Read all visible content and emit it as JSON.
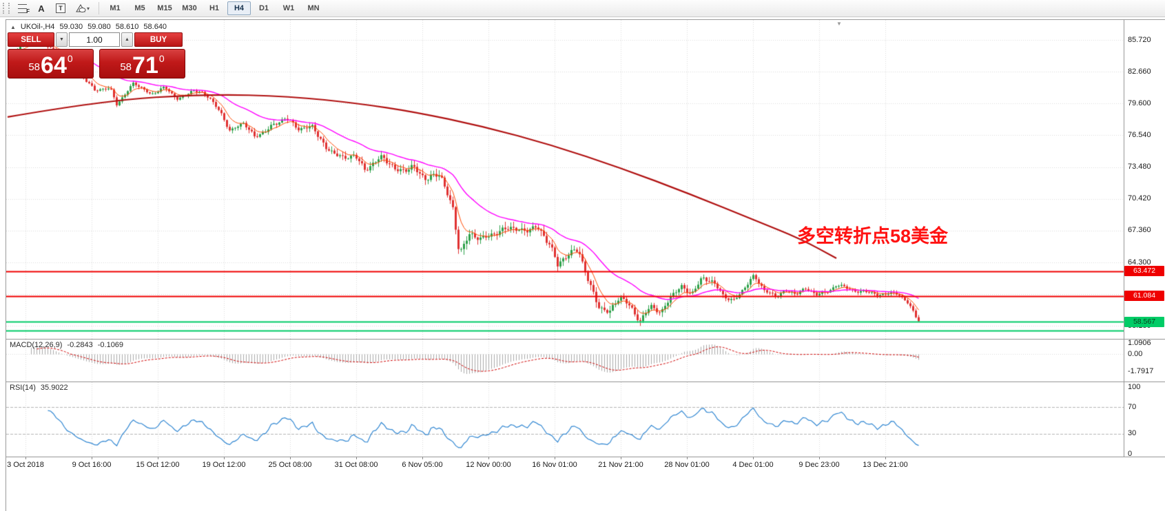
{
  "toolbar": {
    "tools": [
      {
        "id": "fibonacci-tool",
        "glyph": "F"
      },
      {
        "id": "text-tool",
        "glyph": "A"
      },
      {
        "id": "label-tool",
        "glyph": "T"
      },
      {
        "id": "shapes-tool",
        "caret": "▾"
      }
    ],
    "timeframes": [
      "M1",
      "M5",
      "M15",
      "M30",
      "H1",
      "H4",
      "D1",
      "W1",
      "MN"
    ],
    "active_timeframe": "H4"
  },
  "icons": {
    "quote_arrow": "▲",
    "spin_down": "▼",
    "spin_up": "▲",
    "shift_marker": "▼"
  },
  "quote": {
    "symbol": "UKOil-,H4",
    "open": "59.030",
    "high": "59.080",
    "low": "58.610",
    "close": "58.640"
  },
  "trade_panel": {
    "sell_label": "SELL",
    "buy_label": "BUY",
    "volume": "1.00",
    "sell": {
      "prefix": "58",
      "big": "64",
      "pip": "0"
    },
    "buy": {
      "prefix": "58",
      "big": "71",
      "pip": "0"
    }
  },
  "annotation": "多空转折点58美金",
  "price_axis": [
    "85.720",
    "82.660",
    "79.600",
    "76.540",
    "73.480",
    "70.420",
    "67.360",
    "64.300",
    "61.240",
    "58.180"
  ],
  "level_badges": [
    {
      "text": "63.472",
      "bg": "#ef0000",
      "fg": "#ffffff"
    },
    {
      "text": "61.084",
      "bg": "#ef0000",
      "fg": "#ffffff"
    },
    {
      "text": "58.567",
      "bg": "#00cc66",
      "fg": "#0a3d1d"
    }
  ],
  "macd": {
    "name": "MACD(12,26,9)",
    "value": "-0.2843",
    "signal": "-0.1069",
    "axis": [
      "1.0906",
      "0.00",
      "-1.7917"
    ]
  },
  "rsi": {
    "name": "RSI(14)",
    "value": "35.9022",
    "axis": [
      "100",
      "70",
      "30",
      "0"
    ]
  },
  "time_axis": [
    "3 Oct 2018",
    "9 Oct 16:00",
    "15 Oct 12:00",
    "19 Oct 12:00",
    "25 Oct 08:00",
    "31 Oct 08:00",
    "6 Nov 05:00",
    "12 Nov 00:00",
    "16 Nov 01:00",
    "21 Nov 21:00",
    "28 Nov 01:00",
    "4 Dec 01:00",
    "9 Dec 23:00",
    "13 Dec 21:00"
  ],
  "chart_data": {
    "type": "candlestick",
    "symbol": "UKOil-",
    "timeframe": "H4",
    "current_ohlc": {
      "open": 59.03,
      "high": 59.08,
      "low": 58.61,
      "close": 58.64
    },
    "candles": 331,
    "last_close": 58.64,
    "y_range": [
      57.0,
      87.4
    ],
    "price_path": [
      [
        0.0,
        84.2
      ],
      [
        0.027,
        86.0
      ],
      [
        0.039,
        85.3
      ],
      [
        0.054,
        84.4
      ],
      [
        0.073,
        82.9
      ],
      [
        0.088,
        81.6
      ],
      [
        0.094,
        80.8
      ],
      [
        0.111,
        81.0
      ],
      [
        0.118,
        79.5
      ],
      [
        0.137,
        81.7
      ],
      [
        0.156,
        80.3
      ],
      [
        0.171,
        81.2
      ],
      [
        0.186,
        80.1
      ],
      [
        0.202,
        80.8
      ],
      [
        0.22,
        80.2
      ],
      [
        0.232,
        78.9
      ],
      [
        0.243,
        77.0
      ],
      [
        0.258,
        77.6
      ],
      [
        0.27,
        76.3
      ],
      [
        0.289,
        77.6
      ],
      [
        0.304,
        78.1
      ],
      [
        0.319,
        77.0
      ],
      [
        0.334,
        77.6
      ],
      [
        0.349,
        75.2
      ],
      [
        0.368,
        74.1
      ],
      [
        0.38,
        74.8
      ],
      [
        0.391,
        73.4
      ],
      [
        0.41,
        74.3
      ],
      [
        0.425,
        73.1
      ],
      [
        0.444,
        73.7
      ],
      [
        0.459,
        72.1
      ],
      [
        0.474,
        72.7
      ],
      [
        0.488,
        69.6
      ],
      [
        0.495,
        65.4
      ],
      [
        0.506,
        66.9
      ],
      [
        0.52,
        66.3
      ],
      [
        0.535,
        67.3
      ],
      [
        0.55,
        67.9
      ],
      [
        0.565,
        67.0
      ],
      [
        0.58,
        67.7
      ],
      [
        0.595,
        66.3
      ],
      [
        0.603,
        64.1
      ],
      [
        0.614,
        64.9
      ],
      [
        0.626,
        65.3
      ],
      [
        0.637,
        62.6
      ],
      [
        0.648,
        60.3
      ],
      [
        0.66,
        59.4
      ],
      [
        0.671,
        60.8
      ],
      [
        0.683,
        60.0
      ],
      [
        0.694,
        58.8
      ],
      [
        0.705,
        60.3
      ],
      [
        0.717,
        59.2
      ],
      [
        0.728,
        61.0
      ],
      [
        0.739,
        62.0
      ],
      [
        0.751,
        61.5
      ],
      [
        0.762,
        62.8
      ],
      [
        0.774,
        62.2
      ],
      [
        0.785,
        61.1
      ],
      [
        0.796,
        60.7
      ],
      [
        0.808,
        61.9
      ],
      [
        0.819,
        62.9
      ],
      [
        0.83,
        61.5
      ],
      [
        0.842,
        61.1
      ],
      [
        0.853,
        61.7
      ],
      [
        0.864,
        61.3
      ],
      [
        0.876,
        61.6
      ],
      [
        0.887,
        61.2
      ],
      [
        0.898,
        61.5
      ],
      [
        0.91,
        62.2
      ],
      [
        0.921,
        61.8
      ],
      [
        0.932,
        61.3
      ],
      [
        0.944,
        61.6
      ],
      [
        0.955,
        61.2
      ],
      [
        0.966,
        61.4
      ],
      [
        0.978,
        61.1
      ],
      [
        0.989,
        60.3
      ],
      [
        1.0,
        58.64
      ]
    ],
    "slow_ma": [
      [
        2,
        78.3
      ],
      [
        142,
        79.9
      ],
      [
        292,
        80.5
      ],
      [
        412,
        80.3
      ],
      [
        512,
        79.6
      ],
      [
        592,
        78.8
      ],
      [
        692,
        77.4
      ],
      [
        792,
        75.6
      ],
      [
        892,
        73.4
      ],
      [
        992,
        70.9
      ],
      [
        1092,
        68.2
      ],
      [
        1152,
        66.6
      ],
      [
        1205,
        64.7
      ]
    ],
    "ma_periods": {
      "fast": 7,
      "mid": 30
    },
    "hlines": [
      {
        "price": 63.472,
        "color": "#ef0000",
        "width": 2
      },
      {
        "price": 61.084,
        "color": "#ef0000",
        "width": 2
      },
      {
        "price": 58.567,
        "color": "#00cc66",
        "width": 2
      },
      {
        "price": 57.74,
        "color": "#00cc66",
        "width": 2
      }
    ],
    "macd_axis_range": [
      -1.7917,
      1.0906
    ],
    "rsi_levels": [
      70,
      30
    ],
    "colors": {
      "up": "#2da14a",
      "down": "#e03131",
      "fast_ma": "#ff4a00",
      "mid_ma": "#ff00ff",
      "slow_ma": "#b01010",
      "grid": "#dadada",
      "macd_hist": "#a9a9a9",
      "macd_signal": "#d00000",
      "rsi_line": "#2f86d2"
    }
  }
}
